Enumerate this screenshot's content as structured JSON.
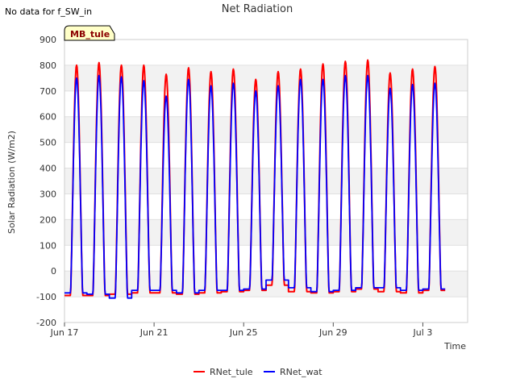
{
  "note": "No data for f_SW_in",
  "badge": "MB_tule",
  "chart_data": {
    "type": "line",
    "title": "Net Radiation",
    "xlabel": "Time",
    "ylabel": "Solar Radiation (W/m2)",
    "ylim": [
      -200,
      900
    ],
    "yticks": [
      -200,
      -100,
      0,
      100,
      200,
      300,
      400,
      500,
      600,
      700,
      800,
      900
    ],
    "xlim": [
      "2024-06-17",
      "2024-07-05"
    ],
    "xticks": [
      {
        "date": "2024-06-17",
        "label": "Jun 17"
      },
      {
        "date": "2024-06-21",
        "label": "Jun 21"
      },
      {
        "date": "2024-06-25",
        "label": "Jun 25"
      },
      {
        "date": "2024-06-29",
        "label": "Jun 29"
      },
      {
        "date": "2024-07-03",
        "label": "Jul 3"
      }
    ],
    "grid": true,
    "legend_position": "bottom-center",
    "day_start": "2024-06-17",
    "series": [
      {
        "name": "RNet_tule",
        "color": "#ff0000",
        "daily_peak": [
          800,
          810,
          800,
          800,
          765,
          790,
          775,
          785,
          745,
          775,
          785,
          805,
          815,
          820,
          770,
          785,
          795
        ],
        "daily_night": [
          -95,
          -95,
          -90,
          -85,
          -85,
          -90,
          -85,
          -80,
          -75,
          -55,
          -80,
          -85,
          -80,
          -70,
          -80,
          -85,
          -75
        ]
      },
      {
        "name": "RNet_wat",
        "color": "#0000ff",
        "daily_peak": [
          750,
          760,
          755,
          740,
          680,
          745,
          720,
          730,
          700,
          720,
          745,
          745,
          760,
          760,
          710,
          725,
          730
        ],
        "daily_night": [
          -85,
          -90,
          -105,
          -75,
          -75,
          -85,
          -75,
          -75,
          -70,
          -35,
          -65,
          -80,
          -75,
          -65,
          -65,
          -75,
          -70
        ]
      }
    ]
  }
}
